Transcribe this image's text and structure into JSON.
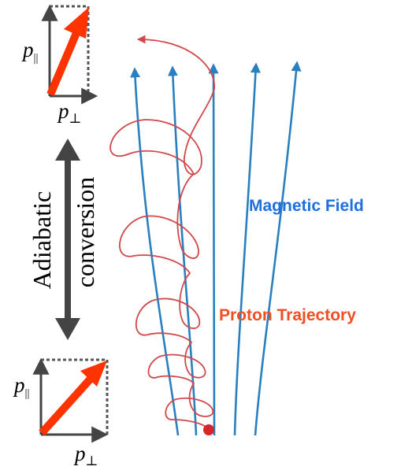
{
  "labels": {
    "magnetic_field": "Magnetic Field",
    "proton_trajectory": "Proton Trajectory",
    "adiabatic_line1": "Adiabatic",
    "adiabatic_line2": "conversion"
  },
  "momentum_top": {
    "p_parallel_base": "p",
    "p_parallel_sub": "||",
    "p_perp_base": "p",
    "p_perp_sub": "⊥"
  },
  "momentum_bottom": {
    "p_parallel_base": "p",
    "p_parallel_sub": "||",
    "p_perp_base": "p",
    "p_perp_sub": "⊥"
  },
  "colors": {
    "field_line": "#2a7fc1",
    "trajectory": "#d0484b",
    "momentum_arrow": "#ff3300",
    "axis": "#444444",
    "dotted_box": "#555555",
    "double_arrow": "#444444",
    "magnetic_field_label": "#1f6fe0",
    "proton_label": "#f04e23"
  }
}
